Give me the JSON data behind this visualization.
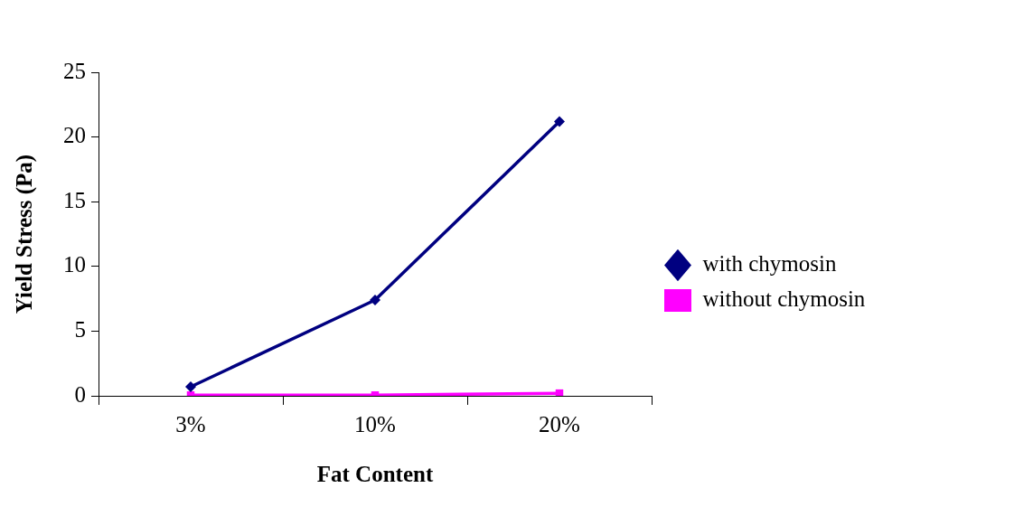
{
  "chart_data": {
    "type": "line",
    "xlabel": "Fat Content",
    "ylabel": "Yield Stress (Pa)",
    "categories": [
      "3%",
      "10%",
      "20%"
    ],
    "series": [
      {
        "name": "with chymosin",
        "color": "#000080",
        "marker": "diamond",
        "values": [
          0.7,
          7.4,
          21.2
        ]
      },
      {
        "name": "without chymosin",
        "color": "#ff00ff",
        "marker": "square",
        "values": [
          0.05,
          0.05,
          0.2
        ]
      }
    ],
    "ylim": [
      0,
      25
    ],
    "yticks": [
      0,
      5,
      10,
      15,
      20,
      25
    ],
    "legend": "right"
  }
}
